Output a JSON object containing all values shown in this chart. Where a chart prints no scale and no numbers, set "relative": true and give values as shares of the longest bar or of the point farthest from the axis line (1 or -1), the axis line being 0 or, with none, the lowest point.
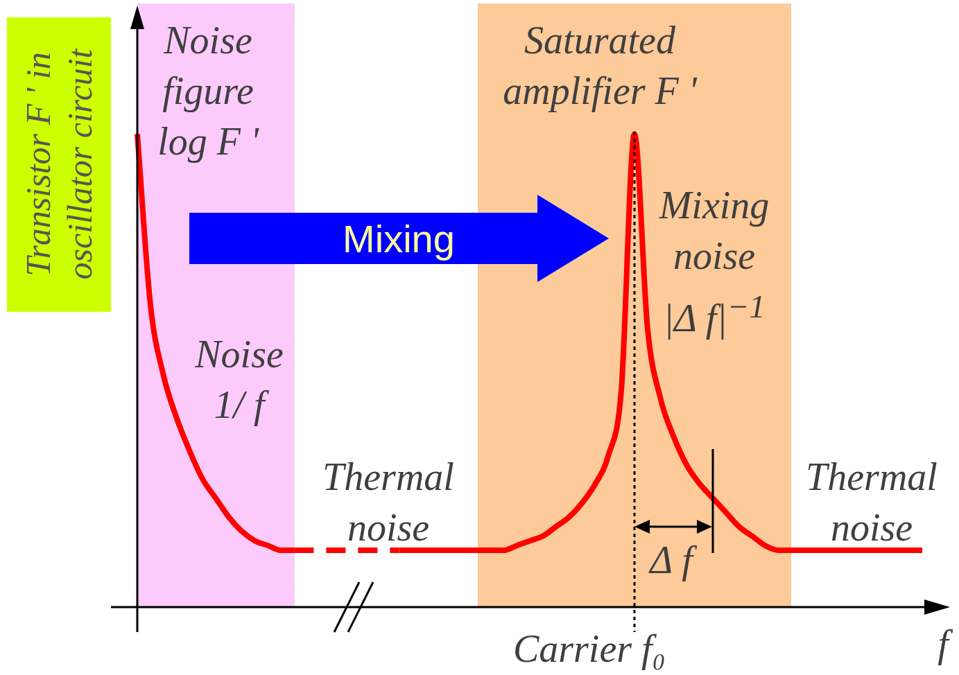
{
  "chart_data": {
    "type": "line",
    "relative": true,
    "ylabel": "Transistor F ' in oscillator circuit",
    "xlabel": "f",
    "categories": [
      null,
      null,
      null,
      null,
      null,
      null,
      null,
      null,
      null,
      null,
      null,
      null,
      null,
      null,
      null,
      null,
      null,
      null,
      null,
      null,
      null,
      null,
      null,
      null,
      null,
      null,
      null,
      null,
      null,
      null,
      null,
      null,
      null,
      null,
      null,
      null,
      null,
      null,
      null,
      null,
      null,
      null,
      null,
      null,
      null,
      null,
      null,
      null,
      null,
      null,
      null,
      null,
      null,
      null,
      null,
      null,
      null,
      null,
      null,
      null,
      null
    ],
    "series": [
      {
        "color": "#ff0000",
        "values": [
          1.0,
          0.64,
          0.49,
          0.4,
          0.33,
          0.27,
          0.23,
          0.19,
          0.16,
          0.14,
          0.13,
          0.12,
          0.12,
          null,
          null,
          null,
          null,
          null,
          null,
          null,
          null,
          null,
          null,
          null,
          null,
          null,
          null,
          null,
          null,
          null,
          null,
          null,
          null,
          null,
          null,
          null,
          null,
          null,
          null,
          null,
          null,
          null,
          null,
          null,
          null,
          null,
          null,
          null,
          null,
          null,
          null,
          null,
          null,
          null,
          null,
          null,
          null,
          null,
          null,
          null,
          null
        ]
      },
      {
        "color": "#ff0000",
        "line_style": "dashed",
        "values": [
          null,
          null,
          null,
          null,
          null,
          null,
          null,
          null,
          null,
          null,
          null,
          null,
          0.12,
          0.12,
          0.12,
          0.12,
          0.12,
          0.12,
          0.12,
          0.12,
          0.12,
          null,
          null,
          null,
          null,
          null,
          null,
          null,
          null,
          null,
          null,
          null,
          null,
          null,
          null,
          null,
          null,
          null,
          null,
          null,
          null,
          null,
          null,
          null,
          null,
          null,
          null,
          null,
          null,
          null,
          null,
          null,
          null,
          null,
          null,
          null,
          null,
          null,
          null,
          null,
          null
        ]
      },
      {
        "color": "#ff0000",
        "values": [
          null,
          null,
          null,
          null,
          null,
          null,
          null,
          null,
          null,
          null,
          null,
          null,
          null,
          null,
          null,
          null,
          null,
          null,
          null,
          null,
          0.12,
          0.12,
          0.12,
          0.12,
          0.12,
          0.12,
          0.12,
          0.12,
          0.12,
          0.13,
          0.14,
          0.15,
          0.17,
          0.19,
          0.22,
          0.26,
          0.32,
          0.46,
          1.0,
          0.59,
          0.44,
          0.36,
          0.3,
          0.26,
          0.23,
          0.2,
          0.17,
          0.15,
          0.13,
          0.12,
          0.12,
          0.12,
          0.12,
          0.12,
          0.12,
          0.12,
          0.12,
          0.12,
          0.12,
          0.12,
          0.12
        ]
      }
    ],
    "annotations": [
      "Noise\nfigure\nlog F '",
      "Noise\n1/ f",
      "Thermal\nnoise",
      "Saturated\namplifier F '",
      "Mixing\nnoise\n|Δ f|$^{−1}$",
      "Δ f",
      "Thermal\nnoise",
      "Mixing",
      "Carrier f₀"
    ],
    "marker": "none"
  }
}
